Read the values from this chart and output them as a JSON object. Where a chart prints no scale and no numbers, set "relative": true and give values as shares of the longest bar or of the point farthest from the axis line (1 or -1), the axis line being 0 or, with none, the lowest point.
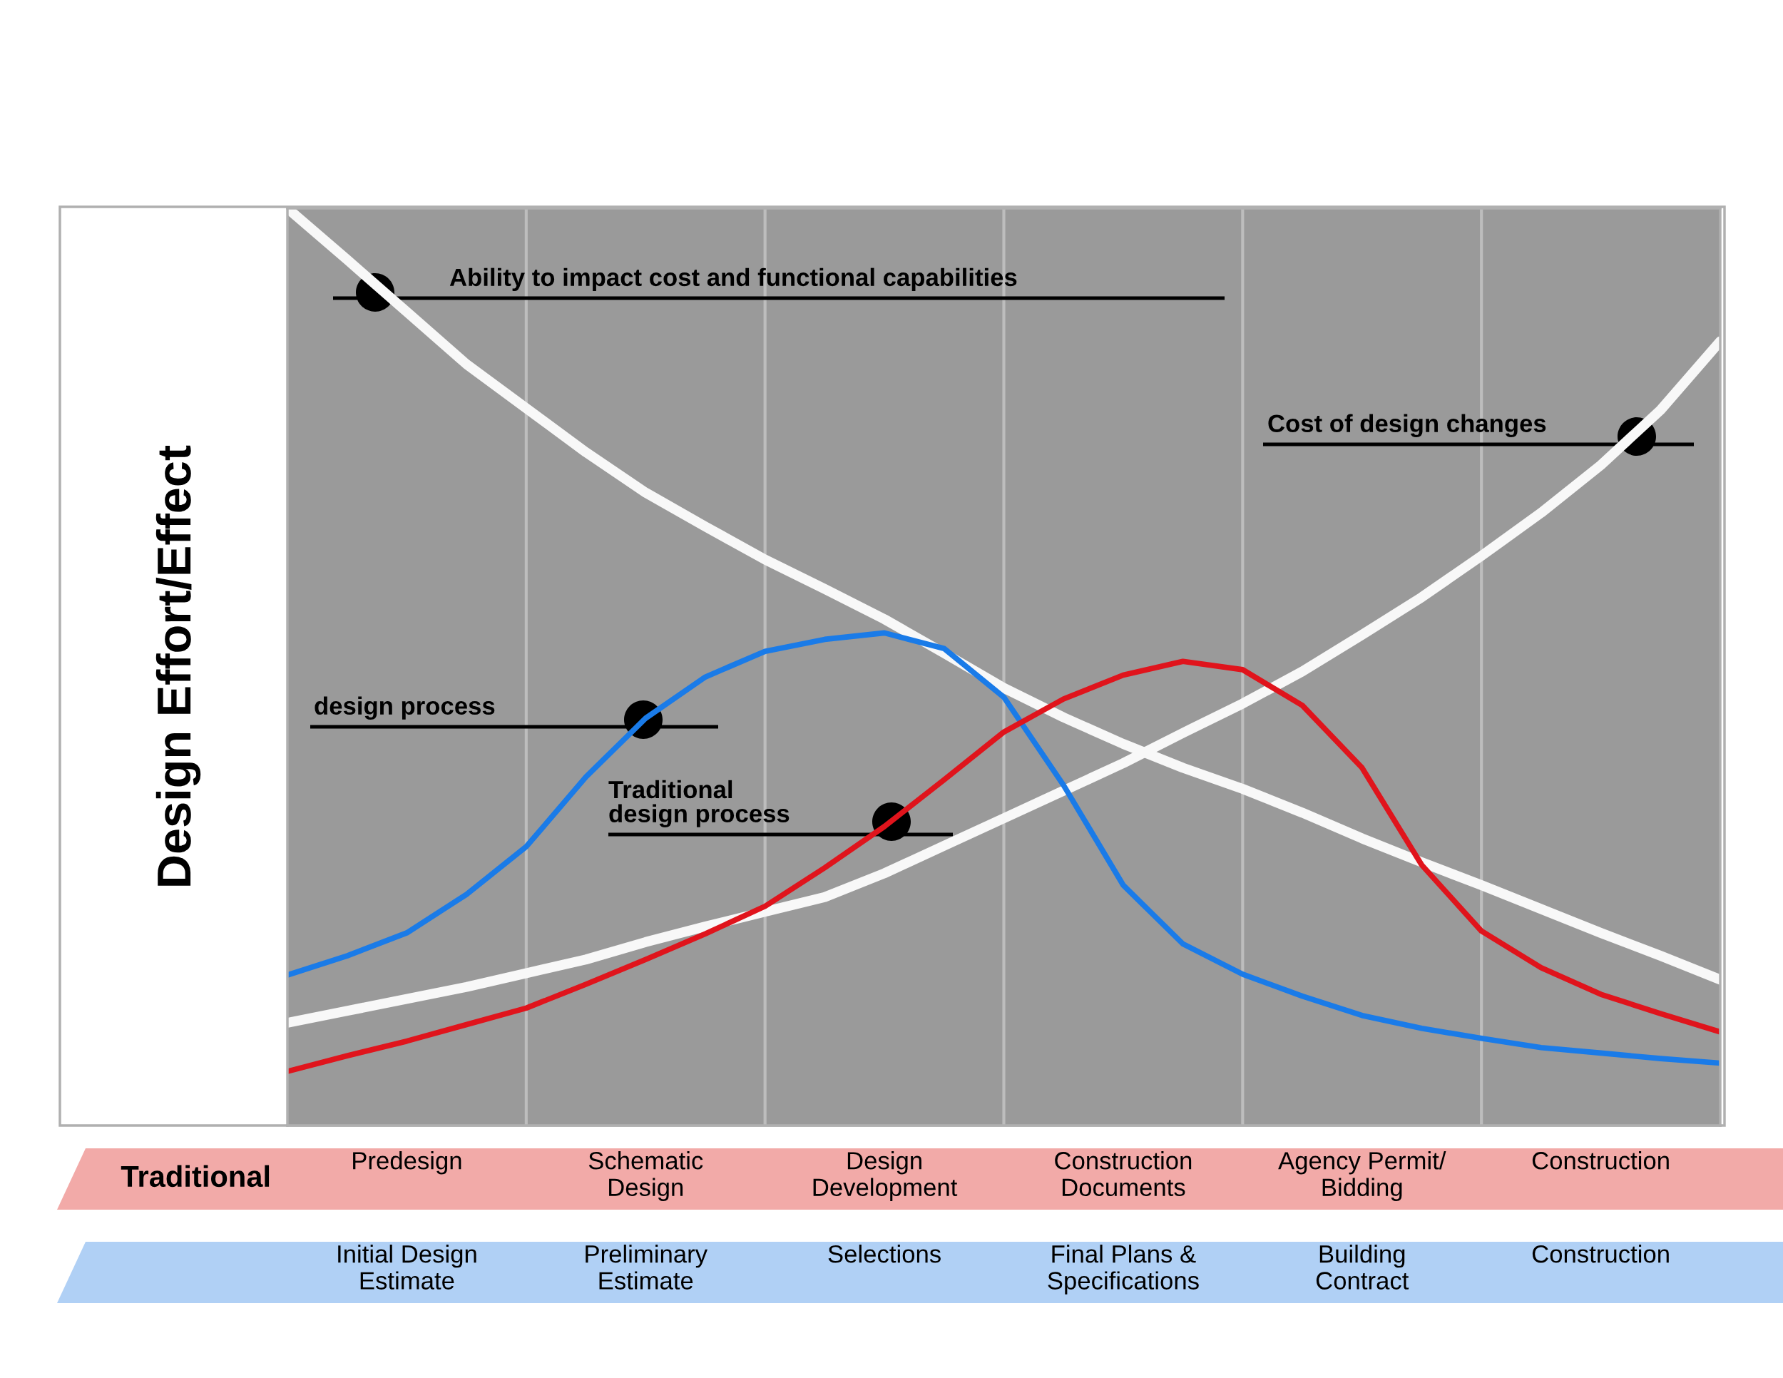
{
  "chart_data": {
    "type": "line",
    "relative": true,
    "ylabel": "Design Effort/Effect",
    "xlabel": "Traditional",
    "categories": [
      null,
      null,
      "Predesign",
      null,
      null,
      null,
      "Schematic\nDesign",
      null,
      null,
      null,
      "Design\nDevelopment",
      null,
      null,
      null,
      "Construction\nDocuments",
      null,
      null,
      null,
      "Agency Permit/\nBidding",
      null,
      null,
      null,
      "Construction",
      null,
      null
    ],
    "series": [
      {
        "color": "#f8f8f8",
        "values": [
          1.0,
          0.944,
          0.887,
          0.83,
          0.782,
          0.734,
          0.69,
          0.653,
          0.617,
          0.585,
          0.552,
          0.515,
          0.477,
          0.445,
          0.416,
          0.39,
          0.367,
          0.341,
          0.313,
          0.287,
          0.262,
          0.236,
          0.21,
          0.185,
          0.159
        ]
      },
      {
        "color": "#f8f8f8",
        "values": [
          0.112,
          0.125,
          0.138,
          0.151,
          0.166,
          0.181,
          0.2,
          0.217,
          0.233,
          0.249,
          0.275,
          0.305,
          0.335,
          0.365,
          0.395,
          0.428,
          0.46,
          0.495,
          0.535,
          0.576,
          0.621,
          0.668,
          0.72,
          0.78,
          0.855
        ]
      },
      {
        "color": "#1a7be8",
        "values": [
          0.164,
          0.185,
          0.21,
          0.252,
          0.304,
          0.38,
          0.444,
          0.489,
          0.517,
          0.53,
          0.537,
          0.52,
          0.467,
          0.371,
          0.262,
          0.198,
          0.165,
          0.141,
          0.12,
          0.106,
          0.095,
          0.085,
          0.079,
          0.073,
          0.068
        ]
      },
      {
        "color": "#e0141c",
        "values": [
          0.059,
          0.076,
          0.092,
          0.11,
          0.128,
          0.154,
          0.181,
          0.209,
          0.239,
          0.281,
          0.326,
          0.377,
          0.429,
          0.465,
          0.491,
          0.506,
          0.497,
          0.458,
          0.39,
          0.284,
          0.212,
          0.172,
          0.143,
          0.122,
          0.102
        ]
      }
    ],
    "annotations": [
      "Ability to impact cost and functional capabilities",
      "Cost of design changes",
      "design process",
      "Traditional\ndesign process",
      "Initial Design\nEstimate",
      "Preliminary\nEstimate",
      "Selections",
      "Final Plans &\nSpecifications",
      "Building\nContract",
      "Construction"
    ],
    "grid": "x"
  }
}
